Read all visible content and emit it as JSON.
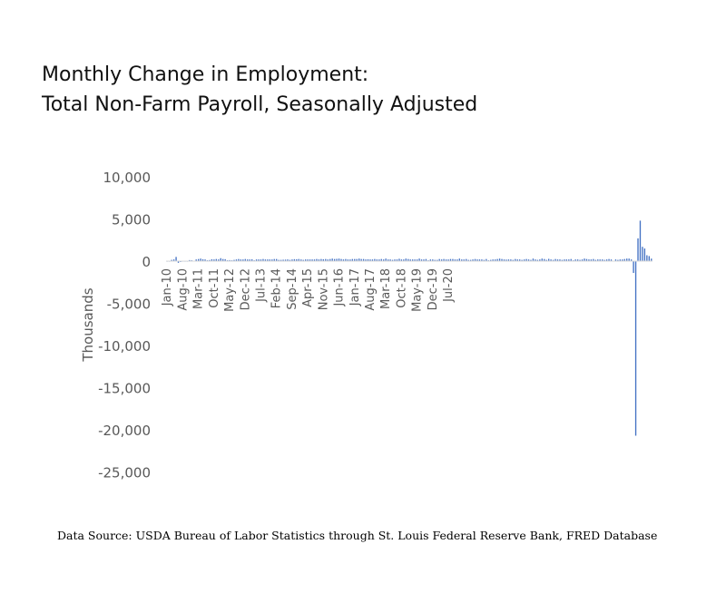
{
  "title_line1": "Monthly Change in Employment:",
  "title_line2": "Total Non-Farm Payroll, Seasonally Adjusted",
  "source": "Data Source: USDA Bureau of Labor Statistics through St. Louis Federal Reserve Bank, FRED Database",
  "colors": {
    "bar": "#4472C4",
    "axis": "#D9D9D9",
    "tick_text": "#595959"
  },
  "chart_data": {
    "type": "bar",
    "title": "Monthly Change in Employment: Total Non-Farm Payroll, Seasonally Adjusted",
    "ylabel": "Thousands",
    "xlabel": "",
    "ylim": [
      -25000,
      10000
    ],
    "yticks": [
      10000,
      5000,
      0,
      -5000,
      -10000,
      -15000,
      -20000,
      -25000
    ],
    "ytick_labels": [
      "10,000",
      "5,000",
      "0",
      "-5,000",
      "-10,000",
      "-15,000",
      "-20,000",
      "-25,000"
    ],
    "xtick_labels": [
      "Jan-10",
      "Aug-10",
      "Mar-11",
      "Oct-11",
      "May-12",
      "Dec-12",
      "Jul-13",
      "Feb-14",
      "Sep-14",
      "Apr-15",
      "Nov-15",
      "Jun-16",
      "Jan-17",
      "Aug-17",
      "Mar-18",
      "Oct-18",
      "May-19",
      "Dec-19",
      "Jul-20"
    ],
    "xtick_interval_months": 7,
    "start": "Jan-10",
    "grid": false,
    "legend": "none",
    "values": [
      -20,
      -60,
      150,
      200,
      500,
      -200,
      -100,
      -50,
      -40,
      -10,
      120,
      100,
      30,
      200,
      250,
      300,
      220,
      200,
      100,
      130,
      220,
      200,
      250,
      200,
      350,
      250,
      230,
      100,
      120,
      100,
      150,
      200,
      250,
      200,
      200,
      250,
      200,
      200,
      220,
      100,
      200,
      200,
      200,
      250,
      200,
      200,
      200,
      200,
      250,
      250,
      150,
      150,
      170,
      180,
      200,
      150,
      200,
      230,
      220,
      250,
      200,
      150,
      200,
      200,
      200,
      200,
      200,
      250,
      200,
      250,
      220,
      250,
      200,
      250,
      300,
      250,
      270,
      300,
      250,
      200,
      250,
      200,
      200,
      250,
      250,
      250,
      300,
      250,
      250,
      200,
      220,
      200,
      200,
      250,
      200,
      200,
      250,
      200,
      300,
      200,
      200,
      150,
      200,
      200,
      280,
      200,
      200,
      300,
      250,
      200,
      200,
      200,
      200,
      300,
      200,
      200,
      250,
      100,
      200,
      200,
      150,
      150,
      250,
      200,
      250,
      200,
      200,
      250,
      250,
      200,
      200,
      300,
      200,
      200,
      250,
      150,
      150,
      200,
      250,
      200,
      200,
      200,
      150,
      250,
      100,
      150,
      200,
      200,
      250,
      300,
      250,
      200,
      180,
      200,
      200,
      150,
      250,
      200,
      200,
      150,
      200,
      250,
      200,
      150,
      300,
      200,
      150,
      200,
      300,
      250,
      150,
      270,
      200,
      150,
      250,
      200,
      200,
      150,
      200,
      200,
      200,
      250,
      100,
      200,
      200,
      150,
      200,
      300,
      250,
      200,
      200,
      250,
      150,
      200,
      200,
      200,
      150,
      200,
      250,
      200,
      50,
      200,
      150,
      200,
      200,
      250,
      300,
      300,
      200,
      -1400,
      -20700,
      2700,
      4800,
      1700,
      1500,
      700,
      600,
      300
    ]
  }
}
